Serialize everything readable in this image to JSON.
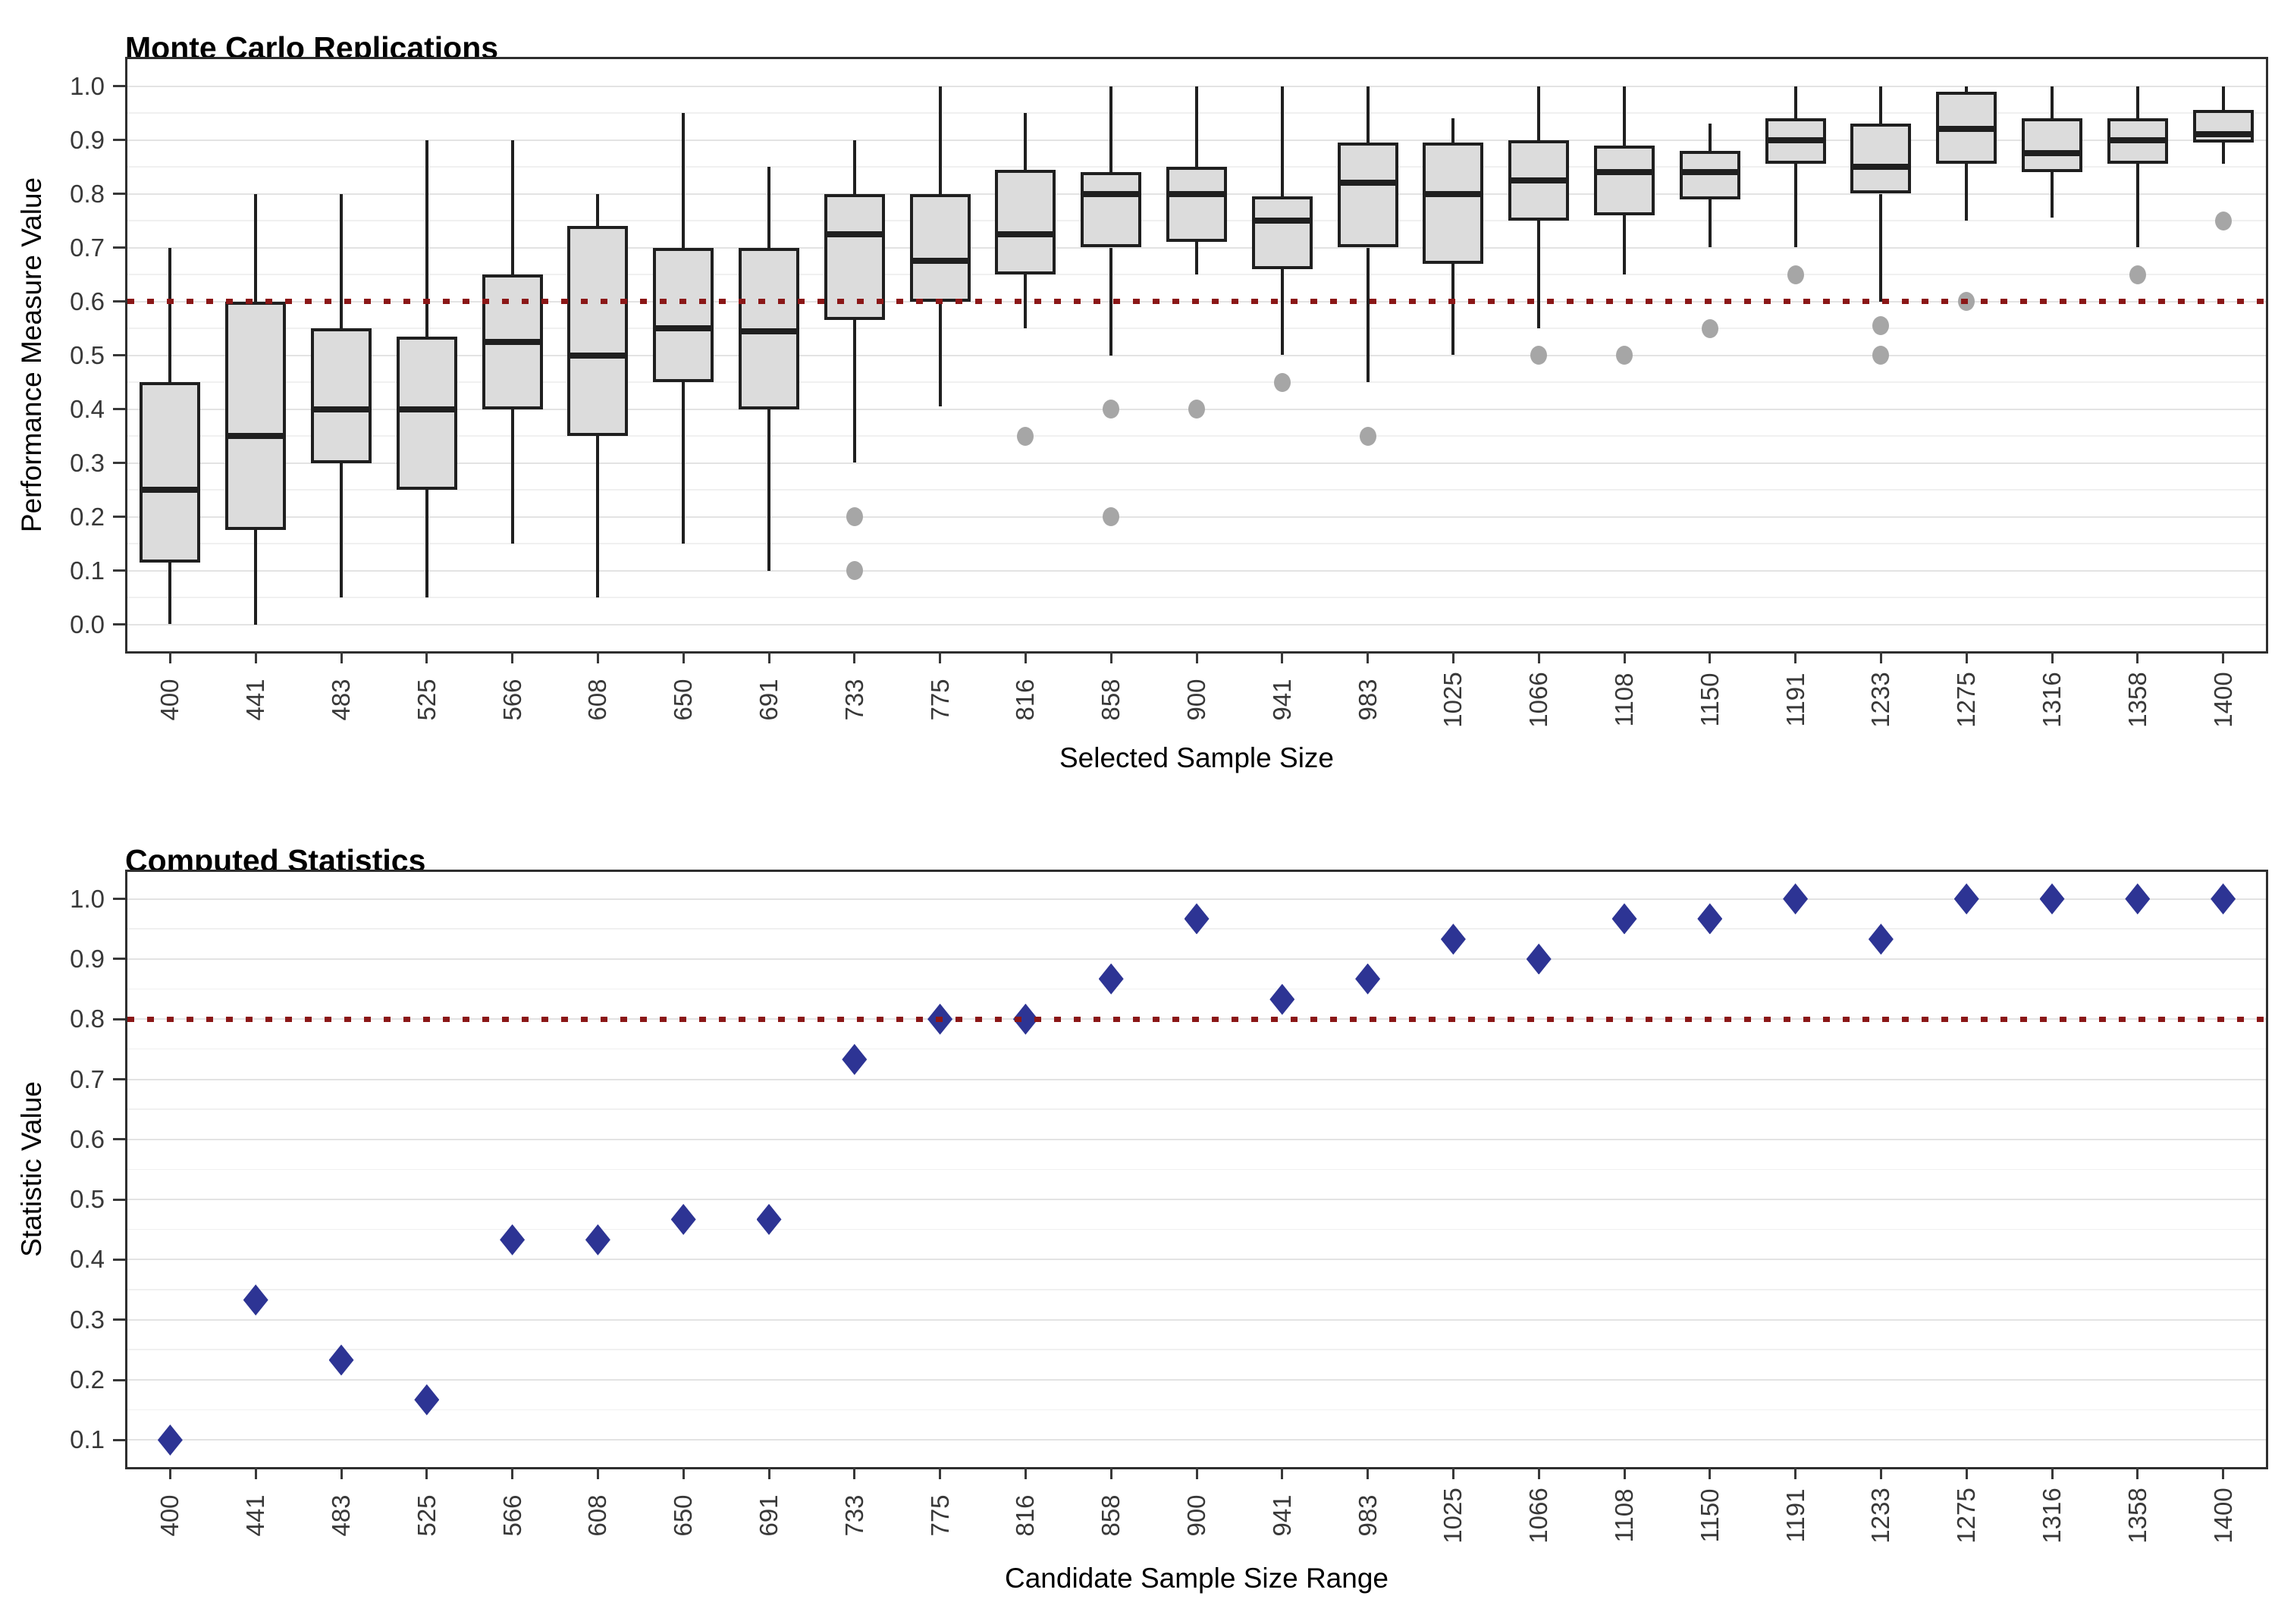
{
  "chart_data": [
    {
      "type": "boxplot",
      "title": "Monte Carlo Replications",
      "xlabel": "Selected Sample Size",
      "ylabel": "Performance Measure Value",
      "legend": "none",
      "grid": "on",
      "categories": [
        400,
        441,
        483,
        525,
        566,
        608,
        650,
        691,
        733,
        775,
        816,
        858,
        900,
        941,
        983,
        1025,
        1066,
        1108,
        1150,
        1191,
        1233,
        1275,
        1316,
        1358,
        1400
      ],
      "yticks": [
        0.0,
        0.1,
        0.2,
        0.3,
        0.4,
        0.5,
        0.6,
        0.7,
        0.8,
        0.9,
        1.0
      ],
      "ylim": [
        -0.05,
        1.05
      ],
      "reference_line": 0.6,
      "boxes": [
        {
          "whislo": 0.0,
          "q1": 0.115,
          "med": 0.25,
          "q3": 0.45,
          "whishi": 0.7,
          "outliers": []
        },
        {
          "whislo": 0.0,
          "q1": 0.175,
          "med": 0.35,
          "q3": 0.6,
          "whishi": 0.8,
          "outliers": []
        },
        {
          "whislo": 0.05,
          "q1": 0.3,
          "med": 0.4,
          "q3": 0.55,
          "whishi": 0.8,
          "outliers": []
        },
        {
          "whislo": 0.05,
          "q1": 0.25,
          "med": 0.4,
          "q3": 0.535,
          "whishi": 0.9,
          "outliers": []
        },
        {
          "whislo": 0.15,
          "q1": 0.4,
          "med": 0.525,
          "q3": 0.65,
          "whishi": 0.9,
          "outliers": []
        },
        {
          "whislo": 0.05,
          "q1": 0.35,
          "med": 0.5,
          "q3": 0.74,
          "whishi": 0.8,
          "outliers": []
        },
        {
          "whislo": 0.15,
          "q1": 0.45,
          "med": 0.55,
          "q3": 0.7,
          "whishi": 0.95,
          "outliers": []
        },
        {
          "whislo": 0.1,
          "q1": 0.4,
          "med": 0.545,
          "q3": 0.7,
          "whishi": 0.85,
          "outliers": []
        },
        {
          "whislo": 0.3,
          "q1": 0.565,
          "med": 0.725,
          "q3": 0.8,
          "whishi": 0.9,
          "outliers": [
            0.2,
            0.1
          ]
        },
        {
          "whislo": 0.405,
          "q1": 0.6,
          "med": 0.675,
          "q3": 0.8,
          "whishi": 1.0,
          "outliers": []
        },
        {
          "whislo": 0.55,
          "q1": 0.65,
          "med": 0.725,
          "q3": 0.845,
          "whishi": 0.95,
          "outliers": [
            0.35
          ]
        },
        {
          "whislo": 0.5,
          "q1": 0.7,
          "med": 0.8,
          "q3": 0.84,
          "whishi": 1.0,
          "outliers": [
            0.4,
            0.2
          ]
        },
        {
          "whislo": 0.65,
          "q1": 0.71,
          "med": 0.8,
          "q3": 0.85,
          "whishi": 1.0,
          "outliers": [
            0.4
          ]
        },
        {
          "whislo": 0.5,
          "q1": 0.66,
          "med": 0.75,
          "q3": 0.795,
          "whishi": 1.0,
          "outliers": [
            0.45
          ]
        },
        {
          "whislo": 0.45,
          "q1": 0.7,
          "med": 0.82,
          "q3": 0.895,
          "whishi": 1.0,
          "outliers": [
            0.35
          ]
        },
        {
          "whislo": 0.5,
          "q1": 0.67,
          "med": 0.8,
          "q3": 0.895,
          "whishi": 0.94,
          "outliers": []
        },
        {
          "whislo": 0.55,
          "q1": 0.75,
          "med": 0.825,
          "q3": 0.9,
          "whishi": 1.0,
          "outliers": [
            0.5
          ]
        },
        {
          "whislo": 0.65,
          "q1": 0.76,
          "med": 0.84,
          "q3": 0.89,
          "whishi": 1.0,
          "outliers": [
            0.5
          ]
        },
        {
          "whislo": 0.7,
          "q1": 0.79,
          "med": 0.84,
          "q3": 0.88,
          "whishi": 0.93,
          "outliers": [
            0.55
          ]
        },
        {
          "whislo": 0.7,
          "q1": 0.855,
          "med": 0.9,
          "q3": 0.94,
          "whishi": 1.0,
          "outliers": [
            0.65
          ]
        },
        {
          "whislo": 0.6,
          "q1": 0.8,
          "med": 0.85,
          "q3": 0.93,
          "whishi": 1.0,
          "outliers": [
            0.555,
            0.5
          ]
        },
        {
          "whislo": 0.75,
          "q1": 0.855,
          "med": 0.92,
          "q3": 0.99,
          "whishi": 1.0,
          "outliers": [
            0.6
          ]
        },
        {
          "whislo": 0.755,
          "q1": 0.84,
          "med": 0.875,
          "q3": 0.94,
          "whishi": 1.0,
          "outliers": []
        },
        {
          "whislo": 0.7,
          "q1": 0.855,
          "med": 0.9,
          "q3": 0.94,
          "whishi": 1.0,
          "outliers": [
            0.65
          ]
        },
        {
          "whislo": 0.855,
          "q1": 0.895,
          "med": 0.91,
          "q3": 0.955,
          "whishi": 1.0,
          "outliers": [
            0.75
          ]
        }
      ]
    },
    {
      "type": "scatter",
      "title": "Computed Statistics",
      "xlabel": "Candidate Sample Size Range",
      "ylabel": "Statistic Value",
      "legend": "none",
      "grid": "on",
      "marker": "diamond",
      "categories": [
        400,
        441,
        483,
        525,
        566,
        608,
        650,
        691,
        733,
        775,
        816,
        858,
        900,
        941,
        983,
        1025,
        1066,
        1108,
        1150,
        1191,
        1233,
        1275,
        1316,
        1358,
        1400
      ],
      "yticks": [
        0.1,
        0.2,
        0.3,
        0.4,
        0.5,
        0.6,
        0.7,
        0.8,
        0.9,
        1.0
      ],
      "ylim": [
        0.055,
        1.045
      ],
      "reference_line": 0.8,
      "values": [
        0.1,
        0.333,
        0.233,
        0.167,
        0.433,
        0.433,
        0.467,
        0.467,
        0.733,
        0.8,
        0.8,
        0.867,
        0.967,
        0.833,
        0.867,
        0.933,
        0.9,
        0.967,
        0.967,
        1.0,
        0.933,
        1.0,
        1.0,
        1.0,
        1.0
      ]
    }
  ],
  "colors": {
    "box_fill": "#DCDCDC",
    "box_stroke": "#1F1F1F",
    "whisker": "#1F1F1F",
    "outlier": "#A6A6A6",
    "marker": "#2D3494",
    "reference_line": "#8B1717",
    "grid_major": "#E3E3E3",
    "grid_minor": "#F0F0F0",
    "panel_border": "#2E2E2E",
    "tick_text": "#383838",
    "title_text": "#000000"
  }
}
